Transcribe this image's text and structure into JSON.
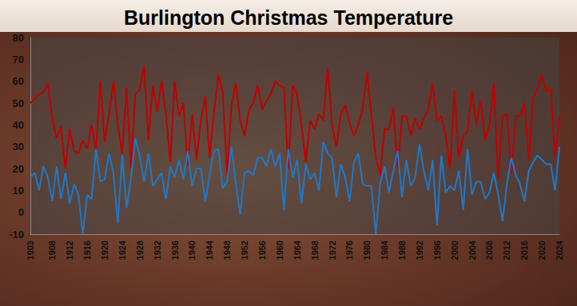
{
  "chart_data": {
    "type": "line",
    "title": "Burlington Christmas Temperature",
    "categories": [
      "1903",
      null,
      null,
      null,
      null,
      "1908",
      null,
      null,
      null,
      "1912",
      null,
      null,
      null,
      "1916",
      null,
      null,
      null,
      "1920",
      null,
      null,
      null,
      "1924",
      null,
      null,
      null,
      "1928",
      null,
      null,
      null,
      "1932",
      null,
      null,
      null,
      "1936",
      null,
      null,
      null,
      "1940",
      null,
      null,
      null,
      "1944",
      null,
      null,
      null,
      "1948",
      null,
      null,
      null,
      "1952",
      null,
      null,
      null,
      "1956",
      null,
      null,
      null,
      "1960",
      null,
      null,
      null,
      "1964",
      null,
      null,
      null,
      "1968",
      null,
      null,
      null,
      "1972",
      null,
      null,
      null,
      "1976",
      null,
      null,
      null,
      "1980",
      null,
      null,
      null,
      "1984",
      null,
      null,
      null,
      "1988",
      null,
      null,
      null,
      "1992",
      null,
      null,
      null,
      "1996",
      null,
      null,
      null,
      "2000",
      null,
      null,
      null,
      "2004",
      null,
      null,
      null,
      "2008",
      null,
      null,
      null,
      "2012",
      null,
      null,
      null,
      "2016",
      null,
      null,
      null,
      "2020",
      null,
      null,
      null,
      "2024"
    ],
    "series": [
      {
        "color": "#c00000",
        "values": [
          50,
          52,
          54,
          55,
          59,
          43,
          34,
          39,
          20,
          38,
          28,
          27,
          33,
          29,
          40,
          28,
          60,
          32,
          45,
          60,
          40,
          27,
          57,
          20,
          54,
          56,
          67,
          33,
          58,
          46,
          60,
          45,
          23,
          60,
          44,
          50,
          21,
          45,
          24,
          42,
          53,
          25,
          46,
          63,
          55,
          17,
          49,
          59,
          42,
          35,
          47,
          50,
          58,
          47,
          51,
          54,
          60,
          58,
          57,
          20,
          58,
          54,
          40,
          23,
          42,
          38,
          45,
          42,
          66,
          40,
          30,
          45,
          49,
          41,
          35,
          40,
          47,
          64,
          45,
          25,
          17,
          38,
          38,
          48,
          20,
          44,
          44,
          35,
          43,
          38,
          43,
          47,
          59,
          42,
          44,
          35,
          20,
          56,
          25,
          35,
          37,
          56,
          40,
          51,
          33,
          40,
          59,
          15,
          44,
          45,
          18,
          44,
          44,
          50,
          24,
          52,
          57,
          63,
          55,
          57,
          25,
          44
        ]
      },
      {
        "color": "#1f78c8",
        "values": [
          16,
          18,
          10,
          21,
          16,
          5,
          21,
          6,
          18,
          4,
          13,
          8,
          -10,
          8,
          6,
          29,
          14,
          15,
          27,
          18,
          -5,
          26,
          2,
          15,
          34,
          26,
          14,
          27,
          12,
          15,
          18,
          6,
          21,
          16,
          24,
          15,
          28,
          12,
          20,
          20,
          5,
          17,
          28,
          29,
          11,
          14,
          30,
          13,
          -1,
          18,
          19,
          17,
          25,
          25,
          21,
          29,
          21,
          27,
          1,
          29,
          16,
          24,
          4,
          22,
          15,
          18,
          10,
          32,
          27,
          25,
          7,
          22,
          16,
          5,
          23,
          27,
          13,
          12,
          12,
          -10,
          13,
          21,
          9,
          19,
          28,
          7,
          24,
          12,
          16,
          31,
          19,
          10,
          24,
          -6,
          26,
          9,
          12,
          10,
          19,
          1,
          29,
          8,
          14,
          14,
          6,
          9,
          18,
          8,
          -4,
          13,
          25,
          17,
          13,
          5,
          19,
          23,
          26,
          24,
          22,
          22,
          10,
          30
        ]
      }
    ],
    "ylim": [
      -10,
      80
    ],
    "yticks": [
      -10,
      0,
      10,
      20,
      30,
      40,
      50,
      60,
      70,
      80
    ],
    "grid": false
  }
}
